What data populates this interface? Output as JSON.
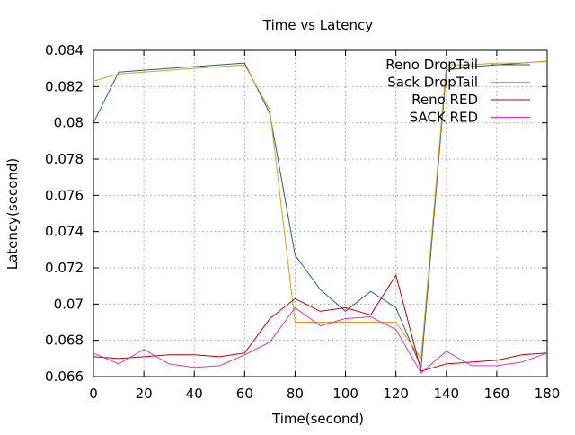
{
  "chart_data": {
    "type": "line",
    "title": "Time vs Latency",
    "xlabel": "Time(second)",
    "ylabel": "Latency(second)",
    "xlim": [
      0,
      180
    ],
    "ylim": [
      0.066,
      0.084
    ],
    "x_ticks": [
      0,
      20,
      40,
      60,
      80,
      100,
      120,
      140,
      160,
      180
    ],
    "x_tick_labels": [
      "0",
      "20",
      "40",
      "60",
      "80",
      "100",
      "120",
      "140",
      "160",
      "180"
    ],
    "y_ticks": [
      0.066,
      0.068,
      0.07,
      0.072,
      0.074,
      0.076,
      0.078,
      0.08,
      0.082,
      0.084
    ],
    "y_tick_labels": [
      "0.066",
      "0.068",
      "0.07",
      "0.072",
      "0.074",
      "0.076",
      "0.078",
      "0.08",
      "0.082",
      "0.084"
    ],
    "grid": true,
    "legend_position": "top-right",
    "x": [
      0,
      10,
      20,
      30,
      40,
      50,
      60,
      70,
      80,
      90,
      100,
      110,
      120,
      130,
      140,
      150,
      160,
      170,
      180
    ],
    "series": [
      {
        "name": "Reno DropTail",
        "color": "#1f5f8b",
        "values": [
          0.08,
          0.0828,
          0.0829,
          0.083,
          0.0831,
          0.0832,
          0.0833,
          0.0805,
          0.0727,
          0.0708,
          0.0696,
          0.0707,
          0.0698,
          0.0665,
          0.0829,
          0.0831,
          0.0832,
          0.0833,
          0.0834
        ]
      },
      {
        "name": "Sack DropTail",
        "color": "#e69f00",
        "values": [
          0.0823,
          0.0827,
          0.0828,
          0.0829,
          0.083,
          0.0831,
          0.0832,
          0.0807,
          0.069,
          0.069,
          0.069,
          0.069,
          0.069,
          0.067,
          0.0832,
          0.0832,
          0.0833,
          0.0833,
          0.0834
        ]
      },
      {
        "name": "Reno RED",
        "color": "#c00000",
        "values": [
          0.0671,
          0.067,
          0.0671,
          0.0672,
          0.0672,
          0.0671,
          0.0673,
          0.0692,
          0.0703,
          0.0696,
          0.0698,
          0.0694,
          0.0716,
          0.0663,
          0.0667,
          0.0668,
          0.0669,
          0.0672,
          0.0673
        ]
      },
      {
        "name": "SACK RED",
        "color": "#d633d6",
        "values": [
          0.0673,
          0.0667,
          0.0675,
          0.0667,
          0.0665,
          0.0666,
          0.0672,
          0.0679,
          0.0698,
          0.0688,
          0.0692,
          0.0693,
          0.0686,
          0.0662,
          0.0674,
          0.0666,
          0.0666,
          0.0668,
          0.0673
        ]
      }
    ]
  }
}
